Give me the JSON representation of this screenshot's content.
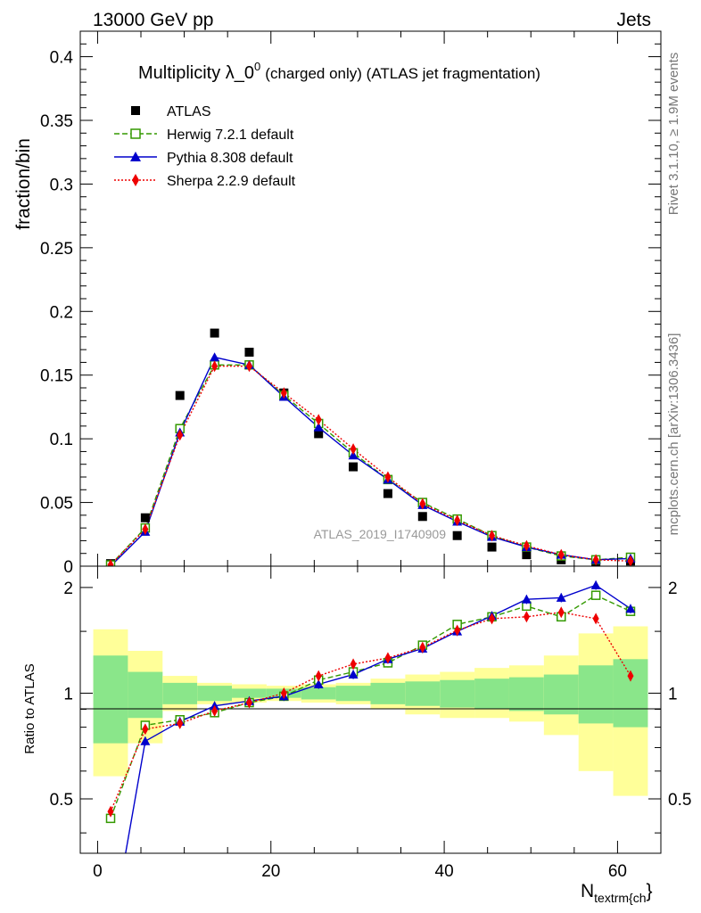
{
  "header": {
    "left": "13000 GeV pp",
    "right": "Jets",
    "side_top": "Rivet 3.1.10, ≥ 1.9M events",
    "side_bottom": "mcplots.cern.ch [arXiv:1306.3436]"
  },
  "chart_data": [
    {
      "type": "line",
      "title_main": "Multiplicity λ_0",
      "title_sup": "0",
      "title_rest": "(charged only) (ATLAS jet fragmentation)",
      "ylabel": "fraction/bin",
      "xlabel": "N",
      "xlabel_sub": "textrm{ch",
      "xlabel_end": "}",
      "watermark": "ATLAS_2019_I1740909",
      "xlim": [
        -2,
        65
      ],
      "ylim": [
        0,
        0.42
      ],
      "yticks": [
        0,
        0.05,
        0.1,
        0.15,
        0.2,
        0.25,
        0.3,
        0.35,
        0.4
      ],
      "ytick_labels": [
        "0",
        "0.05",
        "0.1",
        "0.15",
        "0.2",
        "0.25",
        "0.3",
        "0.35",
        "0.4"
      ],
      "x": [
        1.5,
        5.5,
        9.5,
        13.5,
        17.5,
        21.5,
        25.5,
        29.5,
        33.5,
        37.5,
        41.5,
        45.5,
        49.5,
        53.5,
        57.5,
        61.5
      ],
      "series": [
        {
          "name": "ATLAS",
          "color": "#000000",
          "marker": "square",
          "values": [
            0.002,
            0.038,
            0.134,
            0.183,
            0.168,
            0.136,
            0.104,
            0.078,
            0.057,
            0.039,
            0.024,
            0.015,
            0.009,
            0.005,
            0.003,
            0.004
          ]
        },
        {
          "name": "Herwig 7.2.1 default",
          "color": "#339900",
          "marker": "open-square",
          "dash": "6,3",
          "values": [
            0.001,
            0.03,
            0.108,
            0.158,
            0.158,
            0.134,
            0.112,
            0.089,
            0.068,
            0.05,
            0.037,
            0.024,
            0.015,
            0.008,
            0.005,
            0.007
          ]
        },
        {
          "name": "Pythia 8.308 default",
          "color": "#0000cc",
          "marker": "triangle",
          "dash": "",
          "values": [
            0.0,
            0.027,
            0.105,
            0.164,
            0.158,
            0.133,
            0.109,
            0.087,
            0.068,
            0.048,
            0.035,
            0.023,
            0.015,
            0.009,
            0.005,
            0.006
          ]
        },
        {
          "name": "Sherpa 2.2.9 default",
          "color": "#ee0000",
          "marker": "diamond",
          "dash": "2,2",
          "values": [
            0.001,
            0.029,
            0.103,
            0.157,
            0.157,
            0.136,
            0.115,
            0.092,
            0.07,
            0.049,
            0.036,
            0.024,
            0.016,
            0.009,
            0.005,
            0.004
          ]
        }
      ]
    },
    {
      "type": "line",
      "ylabel": "Ratio to ATLAS",
      "xlim": [
        -2,
        65
      ],
      "ylim": [
        0.35,
        2.3
      ],
      "xticks": [
        0,
        20,
        40,
        60
      ],
      "xtick_labels": [
        "0",
        "20",
        "40",
        "60"
      ],
      "yticks": [
        0.5,
        1,
        2
      ],
      "ytick_labels": [
        "0.5",
        "1",
        "2"
      ],
      "reference": 1,
      "bands": {
        "bins": [
          [
            -0.5,
            3.5
          ],
          [
            3.5,
            7.5
          ],
          [
            7.5,
            11.5
          ],
          [
            11.5,
            15.5
          ],
          [
            15.5,
            19.5
          ],
          [
            19.5,
            23.5
          ],
          [
            23.5,
            27.5
          ],
          [
            27.5,
            31.5
          ],
          [
            31.5,
            35.5
          ],
          [
            35.5,
            39.5
          ],
          [
            39.5,
            43.5
          ],
          [
            43.5,
            47.5
          ],
          [
            47.5,
            51.5
          ],
          [
            51.5,
            55.5
          ],
          [
            55.5,
            59.5
          ],
          [
            59.5,
            63.5
          ]
        ],
        "inner_color": "#8ae68a",
        "outer_color": "#ffff99",
        "inner": [
          [
            0.72,
            1.28
          ],
          [
            0.85,
            1.15
          ],
          [
            0.93,
            1.07
          ],
          [
            0.95,
            1.05
          ],
          [
            0.97,
            1.03
          ],
          [
            0.97,
            1.03
          ],
          [
            0.96,
            1.04
          ],
          [
            0.95,
            1.05
          ],
          [
            0.93,
            1.07
          ],
          [
            0.92,
            1.08
          ],
          [
            0.91,
            1.09
          ],
          [
            0.9,
            1.1
          ],
          [
            0.89,
            1.11
          ],
          [
            0.87,
            1.13
          ],
          [
            0.82,
            1.2
          ],
          [
            0.8,
            1.25
          ]
        ],
        "outer": [
          [
            0.58,
            1.52
          ],
          [
            0.72,
            1.32
          ],
          [
            0.89,
            1.12
          ],
          [
            0.93,
            1.07
          ],
          [
            0.94,
            1.06
          ],
          [
            0.95,
            1.05
          ],
          [
            0.94,
            1.06
          ],
          [
            0.93,
            1.07
          ],
          [
            0.9,
            1.1
          ],
          [
            0.87,
            1.13
          ],
          [
            0.85,
            1.15
          ],
          [
            0.85,
            1.18
          ],
          [
            0.83,
            1.2
          ],
          [
            0.76,
            1.28
          ],
          [
            0.6,
            1.48
          ],
          [
            0.51,
            1.55
          ]
        ]
      },
      "series": [
        {
          "name": "Herwig 7.2.1 default",
          "color": "#339900",
          "marker": "open-square",
          "dash": "6,3",
          "values": [
            0.44,
            0.81,
            0.84,
            0.88,
            0.94,
            0.98,
            1.09,
            1.15,
            1.22,
            1.37,
            1.57,
            1.65,
            1.77,
            1.65,
            1.9,
            1.71
          ]
        },
        {
          "name": "Pythia 8.308 default",
          "color": "#0000cc",
          "marker": "triangle",
          "dash": "",
          "values": [
            0.2,
            0.73,
            0.83,
            0.92,
            0.95,
            0.98,
            1.06,
            1.13,
            1.25,
            1.34,
            1.5,
            1.66,
            1.85,
            1.87,
            2.03,
            1.74
          ]
        },
        {
          "name": "Sherpa 2.2.9 default",
          "color": "#ee0000",
          "marker": "diamond",
          "dash": "2,2",
          "values": [
            0.46,
            0.79,
            0.82,
            0.89,
            0.94,
            1.0,
            1.12,
            1.21,
            1.26,
            1.35,
            1.51,
            1.63,
            1.65,
            1.7,
            1.63,
            1.12
          ]
        }
      ]
    }
  ]
}
